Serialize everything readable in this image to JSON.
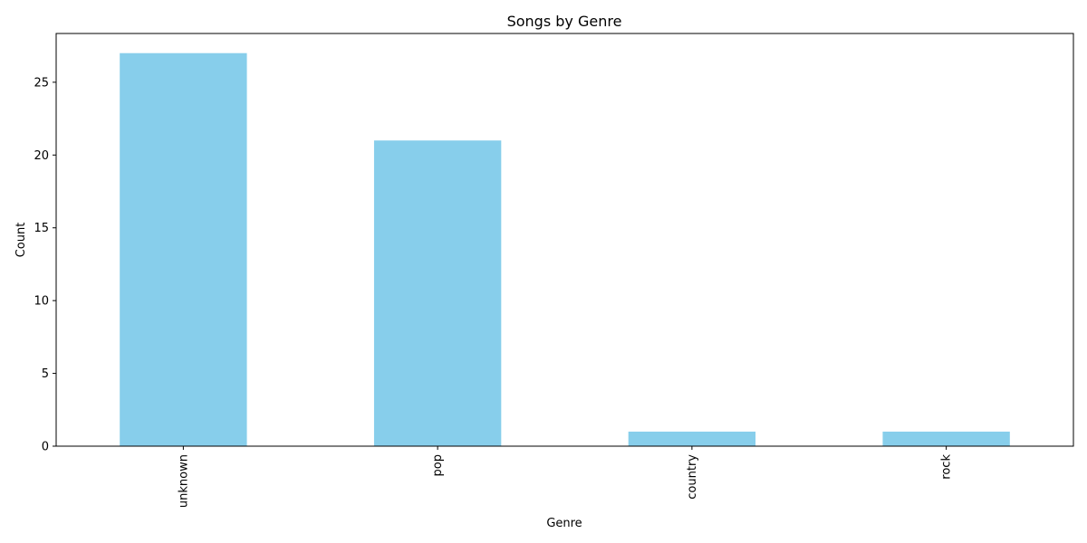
{
  "chart_data": {
    "type": "bar",
    "title": "Songs by Genre",
    "xlabel": "Genre",
    "ylabel": "Count",
    "categories": [
      "unknown",
      "pop",
      "country",
      "rock"
    ],
    "values": [
      27,
      21,
      1,
      1
    ],
    "ylim": [
      0,
      28.35
    ],
    "yticks": [
      0,
      5,
      10,
      15,
      20,
      25
    ],
    "bar_color": "#87CEEB",
    "grid": false,
    "legend": "none"
  }
}
